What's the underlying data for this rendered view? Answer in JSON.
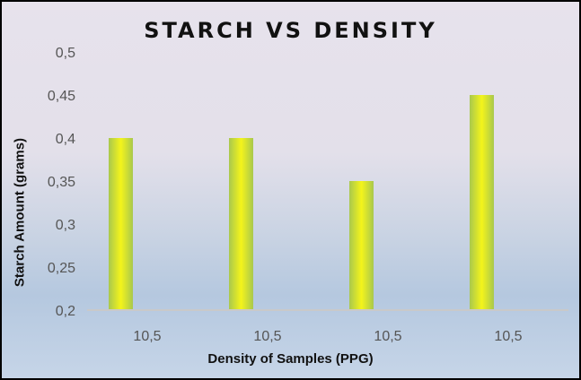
{
  "chart_data": {
    "type": "bar",
    "title": "STARCH VS DENSITY",
    "xlabel": "Density of Samples (PPG)",
    "ylabel": "Starch Amount (grams)",
    "categories": [
      "10,5",
      "10,5",
      "10,5",
      "10,5"
    ],
    "values": [
      0.4,
      0.4,
      0.35,
      0.45
    ],
    "ylim": [
      0.2,
      0.5
    ],
    "yticks": [
      0.2,
      0.25,
      0.3,
      0.35,
      0.4,
      0.45,
      0.5
    ],
    "ytick_labels": [
      "0,2",
      "0,25",
      "0,3",
      "0,35",
      "0,4",
      "0,45",
      "0,5"
    ],
    "grid": false,
    "colors": {
      "bar_center": "#f4f41a",
      "bar_edge": "#a9c84e",
      "axis": "#c9c9c9"
    }
  }
}
